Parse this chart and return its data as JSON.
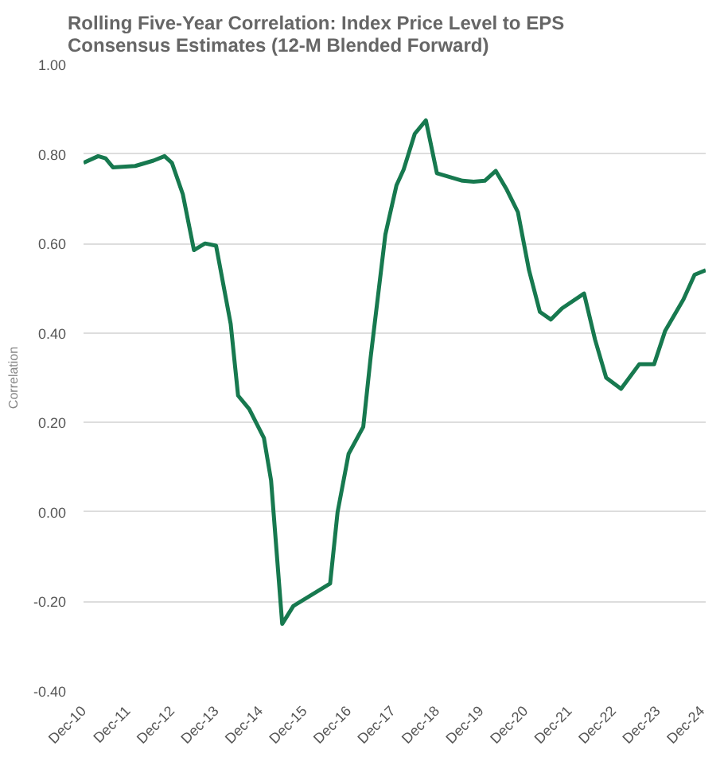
{
  "chart_data": {
    "type": "line",
    "title": "Rolling Five-Year Correlation: Index Price Level to EPS Consensus Estimates (12-M Blended Forward)",
    "ylabel": "Correlation",
    "x": [
      "2010-12",
      "2011-04",
      "2011-06",
      "2011-08",
      "2012-02",
      "2012-07",
      "2012-10",
      "2012-12",
      "2013-03",
      "2013-06",
      "2013-09",
      "2013-12",
      "2014-04",
      "2014-06",
      "2014-09",
      "2015-01",
      "2015-03",
      "2015-06",
      "2015-09",
      "2016-07",
      "2016-09",
      "2016-12",
      "2017-04",
      "2017-06",
      "2017-10",
      "2018-01",
      "2018-03",
      "2018-06",
      "2018-09",
      "2018-12",
      "2019-07",
      "2019-10",
      "2020-01",
      "2020-04",
      "2020-07",
      "2020-10",
      "2021-01",
      "2021-04",
      "2021-07",
      "2021-10",
      "2022-04",
      "2022-07",
      "2022-10",
      "2023-02",
      "2023-07",
      "2023-11",
      "2024-02",
      "2024-07",
      "2024-10",
      "2025-01"
    ],
    "series": [
      {
        "color": "#17794f",
        "values": [
          0.78,
          0.795,
          0.79,
          0.77,
          0.773,
          0.785,
          0.795,
          0.78,
          0.71,
          0.585,
          0.6,
          0.595,
          0.42,
          0.26,
          0.23,
          0.165,
          0.07,
          -0.25,
          -0.21,
          -0.16,
          0.0,
          0.13,
          0.19,
          0.345,
          0.62,
          0.73,
          0.765,
          0.845,
          0.875,
          0.757,
          0.74,
          0.738,
          0.74,
          0.762,
          0.72,
          0.67,
          0.54,
          0.447,
          0.43,
          0.455,
          0.488,
          0.385,
          0.3,
          0.275,
          0.33,
          0.33,
          0.405,
          0.475,
          0.53,
          0.54
        ]
      }
    ],
    "xlim": [
      "2010-12",
      "2025-01"
    ],
    "xticks": [
      {
        "value": "2010-12",
        "label": "Dec-10"
      },
      {
        "value": "2011-12",
        "label": "Dec-11"
      },
      {
        "value": "2012-12",
        "label": "Dec-12"
      },
      {
        "value": "2013-12",
        "label": "Dec-13"
      },
      {
        "value": "2014-12",
        "label": "Dec-14"
      },
      {
        "value": "2015-12",
        "label": "Dec-15"
      },
      {
        "value": "2016-12",
        "label": "Dec-16"
      },
      {
        "value": "2017-12",
        "label": "Dec-17"
      },
      {
        "value": "2018-12",
        "label": "Dec-18"
      },
      {
        "value": "2019-12",
        "label": "Dec-19"
      },
      {
        "value": "2020-12",
        "label": "Dec-20"
      },
      {
        "value": "2021-12",
        "label": "Dec-21"
      },
      {
        "value": "2022-12",
        "label": "Dec-22"
      },
      {
        "value": "2023-12",
        "label": "Dec-23"
      },
      {
        "value": "2024-12",
        "label": "Dec-24"
      }
    ],
    "ylim": [
      -0.4,
      1.0
    ],
    "yticks": [
      {
        "value": -0.4,
        "label": "-0.40"
      },
      {
        "value": -0.2,
        "label": "-0.20"
      },
      {
        "value": 0,
        "label": "0.00"
      },
      {
        "value": 0.2,
        "label": "0.20"
      },
      {
        "value": 0.4,
        "label": "0.40"
      },
      {
        "value": 0.6,
        "label": "0.60"
      },
      {
        "value": 0.8,
        "label": "0.80"
      },
      {
        "value": 1.0,
        "label": "1.00"
      }
    ],
    "grid": "y",
    "marker": "none",
    "line_style": "solid"
  }
}
